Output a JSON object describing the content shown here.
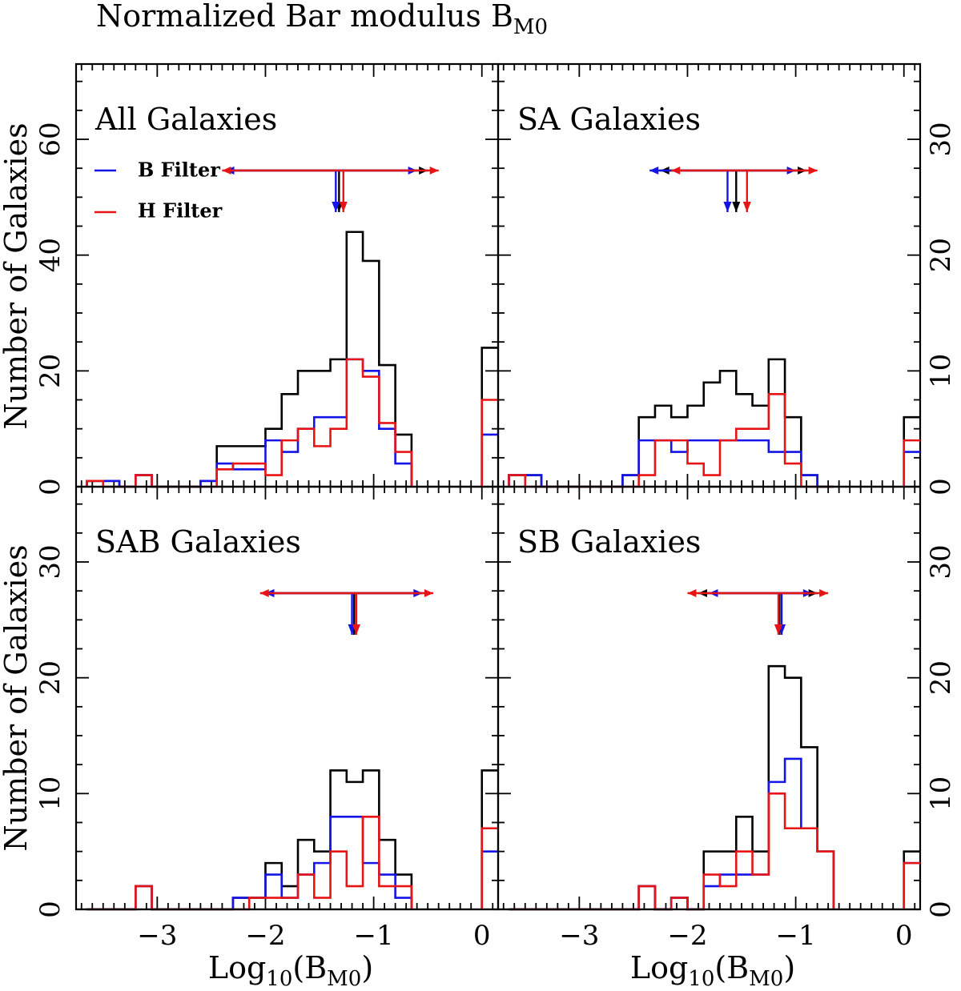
{
  "figure": {
    "title_main": "Normalized Bar modulus B",
    "title_sub": "M0"
  },
  "colors": {
    "all": "#000000",
    "b_filter": "#1414e6",
    "h_filter": "#e61414"
  },
  "legend": {
    "b_label": "B Filter",
    "h_label": "H Filter",
    "placement": "upper-left of first panel"
  },
  "axes": {
    "xlabel_main": "Log",
    "xlabel_sub1": "10",
    "xlabel_mid": "(B",
    "xlabel_sub2": "M0",
    "xlabel_end": ")",
    "ylabel": "Number of Galaxies",
    "xlim": [
      -3.75,
      0.15
    ],
    "xticks": [
      -3,
      -2,
      -1,
      0
    ],
    "xtick_labels": [
      "−3",
      "−2",
      "−1",
      "0"
    ]
  },
  "chart_data": [
    {
      "type": "histogram",
      "title": "All Galaxies",
      "ylim": [
        0,
        73
      ],
      "yticks": [
        0,
        20,
        40,
        60
      ],
      "ytick_side": "left",
      "bin_edges": [
        -3.65,
        -3.5,
        -3.35,
        -3.2,
        -3.05,
        -2.9,
        -2.75,
        -2.6,
        -2.45,
        -2.3,
        -2.15,
        -2.0,
        -1.85,
        -1.7,
        -1.55,
        -1.4,
        -1.25,
        -1.1,
        -0.95,
        -0.8,
        -0.65
      ],
      "series": [
        {
          "name": "All",
          "values": [
            1,
            1,
            0,
            2,
            0,
            0,
            0,
            1,
            7,
            7,
            7,
            10,
            16,
            20,
            20,
            22,
            44,
            39,
            21,
            9
          ]
        },
        {
          "name": "B Filter",
          "values": [
            1,
            1,
            0,
            2,
            0,
            0,
            0,
            1,
            4,
            3,
            3,
            8,
            6,
            10,
            12,
            12,
            22,
            20,
            10,
            4
          ]
        },
        {
          "name": "H Filter",
          "values": [
            1,
            0,
            0,
            2,
            0,
            0,
            0,
            0,
            3,
            4,
            4,
            2,
            8,
            10,
            7,
            10,
            22,
            19,
            11,
            6
          ]
        }
      ],
      "zero_bin": {
        "x": [
          0.0,
          0.15
        ],
        "All": 24,
        "B Filter": 9,
        "H Filter": 15
      },
      "arrows": {
        "All": {
          "mean": -1.32,
          "lo": -2.37,
          "hi": -0.5
        },
        "B Filter": {
          "mean": -1.35,
          "lo": -2.37,
          "hi": -0.6
        },
        "H Filter": {
          "mean": -1.28,
          "lo": -2.4,
          "hi": -0.4
        }
      }
    },
    {
      "type": "histogram",
      "title": "SA Galaxies",
      "ylim": [
        0,
        36.5
      ],
      "yticks": [
        0,
        10,
        20,
        30
      ],
      "ytick_side": "right",
      "bin_edges": [
        -3.65,
        -3.5,
        -3.35,
        -3.2,
        -3.05,
        -2.9,
        -2.75,
        -2.6,
        -2.45,
        -2.3,
        -2.15,
        -2.0,
        -1.85,
        -1.7,
        -1.55,
        -1.4,
        -1.25,
        -1.1,
        -0.95,
        -0.8,
        -0.65
      ],
      "series": [
        {
          "name": "All",
          "values": [
            1,
            1,
            0,
            0,
            0,
            0,
            0,
            1,
            6,
            7,
            6,
            7,
            9,
            10,
            8,
            7,
            11,
            6,
            1,
            0
          ]
        },
        {
          "name": "B Filter",
          "values": [
            1,
            1,
            0,
            0,
            0,
            0,
            0,
            1,
            4,
            4,
            3,
            4,
            4,
            4,
            4,
            4,
            3,
            3,
            1,
            0
          ]
        },
        {
          "name": "H Filter",
          "values": [
            1,
            0,
            0,
            0,
            0,
            0,
            0,
            0,
            1,
            4,
            4,
            2,
            1,
            4,
            5,
            5,
            8,
            2,
            0,
            0
          ]
        }
      ],
      "zero_bin": {
        "x": [
          0.0,
          0.15
        ],
        "All": 6,
        "B Filter": 3,
        "H Filter": 4
      },
      "arrows": {
        "All": {
          "mean": -1.55,
          "lo": -2.25,
          "hi": -0.9
        },
        "B Filter": {
          "mean": -1.63,
          "lo": -2.35,
          "hi": -1.0
        },
        "H Filter": {
          "mean": -1.45,
          "lo": -2.15,
          "hi": -0.8
        }
      }
    },
    {
      "type": "histogram",
      "title": "SAB Galaxies",
      "ylim": [
        0,
        36.5
      ],
      "yticks": [
        0,
        10,
        20,
        30
      ],
      "ytick_side": "left",
      "bin_edges": [
        -3.65,
        -3.5,
        -3.35,
        -3.2,
        -3.05,
        -2.9,
        -2.75,
        -2.6,
        -2.45,
        -2.3,
        -2.15,
        -2.0,
        -1.85,
        -1.7,
        -1.55,
        -1.4,
        -1.25,
        -1.1,
        -0.95,
        -0.8,
        -0.65
      ],
      "series": [
        {
          "name": "All",
          "values": [
            0,
            0,
            0,
            2,
            0,
            0,
            0,
            0,
            0,
            1,
            1,
            4,
            2,
            6,
            5,
            12,
            11,
            12,
            6,
            3
          ]
        },
        {
          "name": "B Filter",
          "values": [
            0,
            0,
            0,
            2,
            0,
            0,
            0,
            0,
            0,
            1,
            1,
            3,
            1,
            3,
            4,
            8,
            8,
            4,
            3,
            1
          ]
        },
        {
          "name": "H Filter",
          "values": [
            0,
            0,
            0,
            2,
            0,
            0,
            0,
            0,
            0,
            0,
            1,
            1,
            1,
            3,
            1,
            5,
            2,
            8,
            2,
            2
          ]
        }
      ],
      "zero_bin": {
        "x": [
          0.0,
          0.15
        ],
        "All": 12,
        "B Filter": 5,
        "H Filter": 7
      },
      "arrows": {
        "All": {
          "mean": -1.18,
          "lo": -2.0,
          "hi": -0.55
        },
        "B Filter": {
          "mean": -1.2,
          "lo": -2.0,
          "hi": -0.55
        },
        "H Filter": {
          "mean": -1.16,
          "lo": -2.05,
          "hi": -0.45
        }
      }
    },
    {
      "type": "histogram",
      "title": "SB Galaxies",
      "ylim": [
        0,
        36.5
      ],
      "yticks": [
        0,
        10,
        20,
        30
      ],
      "ytick_side": "right",
      "bin_edges": [
        -3.65,
        -3.5,
        -3.35,
        -3.2,
        -3.05,
        -2.9,
        -2.75,
        -2.6,
        -2.45,
        -2.3,
        -2.15,
        -2.0,
        -1.85,
        -1.7,
        -1.55,
        -1.4,
        -1.25,
        -1.1,
        -0.95,
        -0.8,
        -0.65
      ],
      "series": [
        {
          "name": "All",
          "values": [
            0,
            0,
            0,
            0,
            0,
            0,
            0,
            0,
            2,
            0,
            1,
            0,
            5,
            5,
            8,
            5,
            21,
            20,
            14,
            5
          ]
        },
        {
          "name": "B Filter",
          "values": [
            0,
            0,
            0,
            0,
            0,
            0,
            0,
            0,
            2,
            0,
            1,
            0,
            2,
            3,
            3,
            3,
            11,
            13,
            7,
            5
          ]
        },
        {
          "name": "H Filter",
          "values": [
            0,
            0,
            0,
            0,
            0,
            0,
            0,
            0,
            2,
            0,
            1,
            0,
            3,
            2,
            5,
            3,
            10,
            7,
            7,
            5
          ]
        }
      ],
      "zero_bin": {
        "x": [
          0.0,
          0.15
        ],
        "All": 5,
        "B Filter": 4,
        "H Filter": 4
      },
      "arrows": {
        "All": {
          "mean": -1.15,
          "lo": -1.9,
          "hi": -0.8
        },
        "B Filter": {
          "mean": -1.13,
          "lo": -1.8,
          "hi": -0.85
        },
        "H Filter": {
          "mean": -1.16,
          "lo": -2.0,
          "hi": -0.7
        }
      }
    }
  ]
}
